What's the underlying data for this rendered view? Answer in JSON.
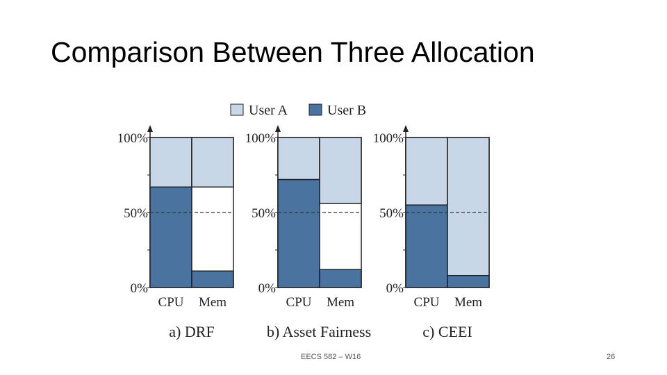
{
  "slide": {
    "title": "Comparison Between Three Allocation",
    "footer": "EECS 582 – W16",
    "page_number": "26"
  },
  "legend": {
    "entries": [
      {
        "label": "User A",
        "color": "#c8d7e8"
      },
      {
        "label": "User B",
        "color": "#4a73a0"
      }
    ]
  },
  "colors": {
    "user_a": "#c8d7e8",
    "user_b": "#4a73a0",
    "empty": "#ffffff",
    "outline": "#222222"
  },
  "chart_data": [
    {
      "type": "bar",
      "stacked": true,
      "title": "a) DRF",
      "categories": [
        "CPU",
        "Mem"
      ],
      "yticks": [
        "100%",
        "50%",
        "0%"
      ],
      "ylim": [
        0,
        100
      ],
      "reference_line": 50,
      "series": [
        {
          "name": "User B",
          "values": [
            67,
            11
          ]
        },
        {
          "name": "User A",
          "values": [
            33,
            33
          ]
        }
      ]
    },
    {
      "type": "bar",
      "stacked": true,
      "title": "b) Asset Fairness",
      "categories": [
        "CPU",
        "Mem"
      ],
      "yticks": [
        "100%",
        "50%",
        "0%"
      ],
      "ylim": [
        0,
        100
      ],
      "reference_line": 50,
      "series": [
        {
          "name": "User B",
          "values": [
            72,
            12
          ]
        },
        {
          "name": "User A",
          "values": [
            28,
            44
          ]
        }
      ]
    },
    {
      "type": "bar",
      "stacked": true,
      "title": "c) CEEI",
      "categories": [
        "CPU",
        "Mem"
      ],
      "yticks": [
        "100%",
        "50%",
        "0%"
      ],
      "ylim": [
        0,
        100
      ],
      "reference_line": 50,
      "series": [
        {
          "name": "User B",
          "values": [
            55,
            8
          ]
        },
        {
          "name": "User A",
          "values": [
            45,
            92
          ]
        }
      ]
    }
  ]
}
